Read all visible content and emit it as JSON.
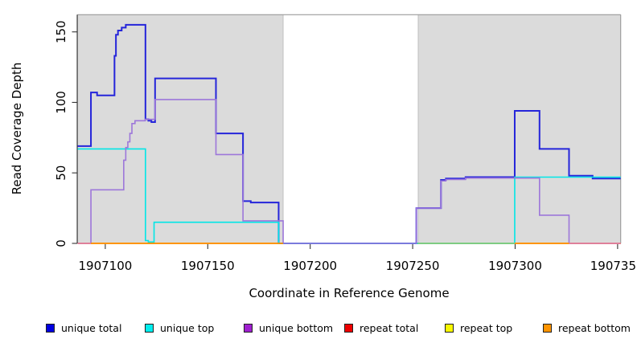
{
  "chart_data": {
    "type": "line",
    "subtype": "step-coverage-plot",
    "title": "",
    "xlabel": "Coordinate in Reference Genome",
    "ylabel": "Read Coverage Depth",
    "xlim": [
      1907086.5,
      1907351.5
    ],
    "ylim": [
      0,
      162
    ],
    "grid": false,
    "x_ticks": [
      {
        "value": 1907100,
        "label": "1907100"
      },
      {
        "value": 1907150,
        "label": "1907150"
      },
      {
        "value": 1907200,
        "label": "1907200"
      },
      {
        "value": 1907250,
        "label": "1907250"
      },
      {
        "value": 1907300,
        "label": "1907300"
      },
      {
        "value": 1907350,
        "label": "190735",
        "clipped_at_right_edge": true
      }
    ],
    "y_ticks": [
      {
        "value": 0,
        "label": "0"
      },
      {
        "value": 50,
        "label": "50"
      },
      {
        "value": 100,
        "label": "100"
      },
      {
        "value": 150,
        "label": "150"
      }
    ],
    "shaded_regions": [
      {
        "x0": 1907086.5,
        "x1": 1907186.8,
        "color": "#DBDBDB"
      },
      {
        "x0": 1907252.7,
        "x1": 1907351.5,
        "color": "#DBDBDB"
      }
    ],
    "series": [
      {
        "name": "unique total",
        "color": "#2525DA",
        "width": 2.0,
        "xend": 1907351.5,
        "steps": [
          [
            1907086.5,
            69
          ],
          [
            1907093,
            107
          ],
          [
            1907096,
            105
          ],
          [
            1907104.5,
            133
          ],
          [
            1907105.2,
            148
          ],
          [
            1907106.2,
            151
          ],
          [
            1907108,
            153
          ],
          [
            1907110,
            155
          ],
          [
            1907119.6,
            88
          ],
          [
            1907121,
            87
          ],
          [
            1907122.5,
            86
          ],
          [
            1907124.3,
            117
          ],
          [
            1907154,
            78
          ],
          [
            1907167.2,
            30
          ],
          [
            1907171,
            29
          ],
          [
            1907184.6,
            0
          ],
          [
            1907251.8,
            25
          ],
          [
            1907263.8,
            45
          ],
          [
            1907266.2,
            46
          ],
          [
            1907275.8,
            47
          ],
          [
            1907299.8,
            94
          ],
          [
            1907311.9,
            67
          ],
          [
            1907326.3,
            48
          ],
          [
            1907337.8,
            46
          ]
        ]
      },
      {
        "name": "unique top",
        "color": "#00E6E6",
        "width": 1.6,
        "xend": 1907351.5,
        "steps": [
          [
            1907086.5,
            67
          ],
          [
            1907119.6,
            2
          ],
          [
            1907121,
            1
          ],
          [
            1907123.8,
            15
          ],
          [
            1907184.6,
            0
          ],
          [
            1907299.8,
            47
          ]
        ]
      },
      {
        "name": "unique bottom",
        "color": "#9D77DA",
        "width": 1.6,
        "xend": 1907351.5,
        "steps": [
          [
            1907086.5,
            0
          ],
          [
            1907093,
            38
          ],
          [
            1907109,
            59
          ],
          [
            1907110,
            68
          ],
          [
            1907111,
            72
          ],
          [
            1907112,
            78
          ],
          [
            1907113,
            85
          ],
          [
            1907114.5,
            87
          ],
          [
            1907119.5,
            88
          ],
          [
            1907124.3,
            102
          ],
          [
            1907154,
            63
          ],
          [
            1907167.2,
            16
          ],
          [
            1907186.8,
            0
          ],
          [
            1907251.8,
            25
          ],
          [
            1907263.8,
            44.3
          ],
          [
            1907266.2,
            45.3
          ],
          [
            1907275.8,
            46.3
          ],
          [
            1907311.9,
            20
          ],
          [
            1907326.3,
            0
          ]
        ]
      },
      {
        "name": "repeat total",
        "color": "#E00000",
        "width": 1.5,
        "xend": 1907351.5,
        "steps": [
          [
            1907086.5,
            0
          ]
        ]
      },
      {
        "name": "repeat top",
        "color": "#F0F000",
        "width": 1.5,
        "xend": 1907351.5,
        "steps": [
          [
            1907086.5,
            0
          ]
        ]
      },
      {
        "name": "repeat bottom",
        "color": "#FF9400",
        "width": 1.8,
        "xend": 1907351.5,
        "steps": [
          [
            1907086.5,
            0
          ]
        ]
      }
    ],
    "baseline_overlap_segments": [
      {
        "x0": 1907086.5,
        "x1": 1907093,
        "color": "#E27F9F"
      },
      {
        "x0": 1907093,
        "x1": 1907186.8,
        "color": "#FF9400"
      },
      {
        "x0": 1907252.7,
        "x1": 1907299.8,
        "color": "#7FCE84"
      },
      {
        "x0": 1907299.8,
        "x1": 1907326.3,
        "color": "#FF9400"
      },
      {
        "x0": 1907326.3,
        "x1": 1907351.5,
        "color": "#E27F9F"
      }
    ],
    "legend": {
      "position": "bottom",
      "items": [
        {
          "label": "unique total",
          "color": "#0000E0"
        },
        {
          "label": "unique top",
          "color": "#00EEEE"
        },
        {
          "label": "unique bottom",
          "color": "#A020D0"
        },
        {
          "label": "repeat total",
          "color": "#EE0000"
        },
        {
          "label": "repeat top",
          "color": "#F8F800"
        },
        {
          "label": "repeat bottom",
          "color": "#FF9400"
        }
      ]
    },
    "colors": {
      "plot_background": "#FFFFFF",
      "shaded_region": "#DBDBDB",
      "region_border": "#ADADAD",
      "box_top_right_border": "#9C9C9C",
      "axis": "#333333"
    }
  }
}
